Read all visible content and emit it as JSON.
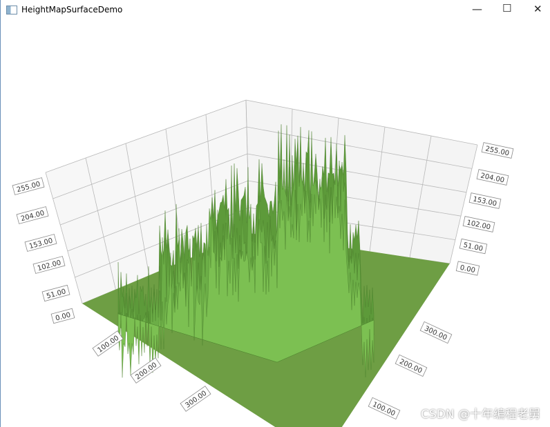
{
  "window": {
    "title": "HeightMapSurfaceDemo"
  },
  "graph": {
    "left_height_labels": [
      "255.00",
      "204.00",
      "153.00",
      "102.00",
      "51.00",
      "0.00"
    ],
    "right_height_labels": [
      "255.00",
      "204.00",
      "153.00",
      "102.00",
      "51.00",
      "0.00"
    ],
    "front_axis_labels": [
      "100.00",
      "200.00",
      "300.00"
    ],
    "side_axis_labels": [
      "300.00",
      "200.00",
      "100.00"
    ]
  },
  "watermark": "CSDN @十年编程老舅"
}
